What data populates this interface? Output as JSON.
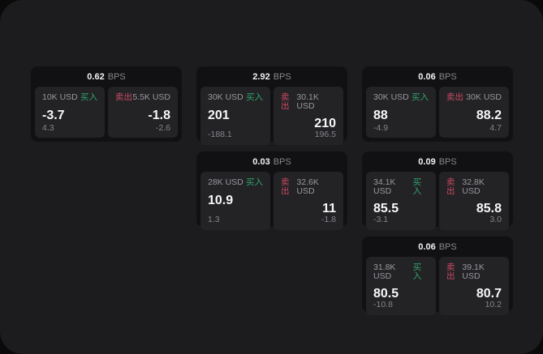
{
  "labels": {
    "buy": "买入",
    "sell": "卖出",
    "bps": "BPS"
  },
  "colors": {
    "window_bg": "#1c1c1e",
    "card_bg": "#111113",
    "tile_bg": "#232326",
    "buy_green": "#2fa46a",
    "sell_red": "#cb4a61",
    "text_primary": "#f7f7f7",
    "text_secondary": "#98989d"
  },
  "cards": [
    {
      "bps": "0.62",
      "buy": {
        "amount": "10K USD",
        "price": "-3.7",
        "delta": "4.3"
      },
      "sell": {
        "amount": "5.5K USD",
        "price": "-1.8",
        "delta": "-2.6"
      }
    },
    {
      "bps": "2.92",
      "buy": {
        "amount": "30K USD",
        "price": "201",
        "delta": "-188.1"
      },
      "sell": {
        "amount": "30.1K USD",
        "price": "210",
        "delta": "196.5"
      }
    },
    {
      "bps": "0.06",
      "buy": {
        "amount": "30K USD",
        "price": "88",
        "delta": "-4.9"
      },
      "sell": {
        "amount": "30K USD",
        "price": "88.2",
        "delta": "4.7"
      }
    },
    {
      "bps": "0.03",
      "buy": {
        "amount": "28K USD",
        "price": "10.9",
        "delta": "1.3"
      },
      "sell": {
        "amount": "32.6K USD",
        "price": "11",
        "delta": "-1.8"
      }
    },
    {
      "bps": "0.09",
      "buy": {
        "amount": "34.1K USD",
        "price": "85.5",
        "delta": "-3.1"
      },
      "sell": {
        "amount": "32.8K USD",
        "price": "85.8",
        "delta": "3.0"
      }
    },
    {
      "bps": "0.06",
      "buy": {
        "amount": "31.8K USD",
        "price": "80.5",
        "delta": "-10.8"
      },
      "sell": {
        "amount": "39.1K USD",
        "price": "80.7",
        "delta": "10.2"
      }
    }
  ]
}
